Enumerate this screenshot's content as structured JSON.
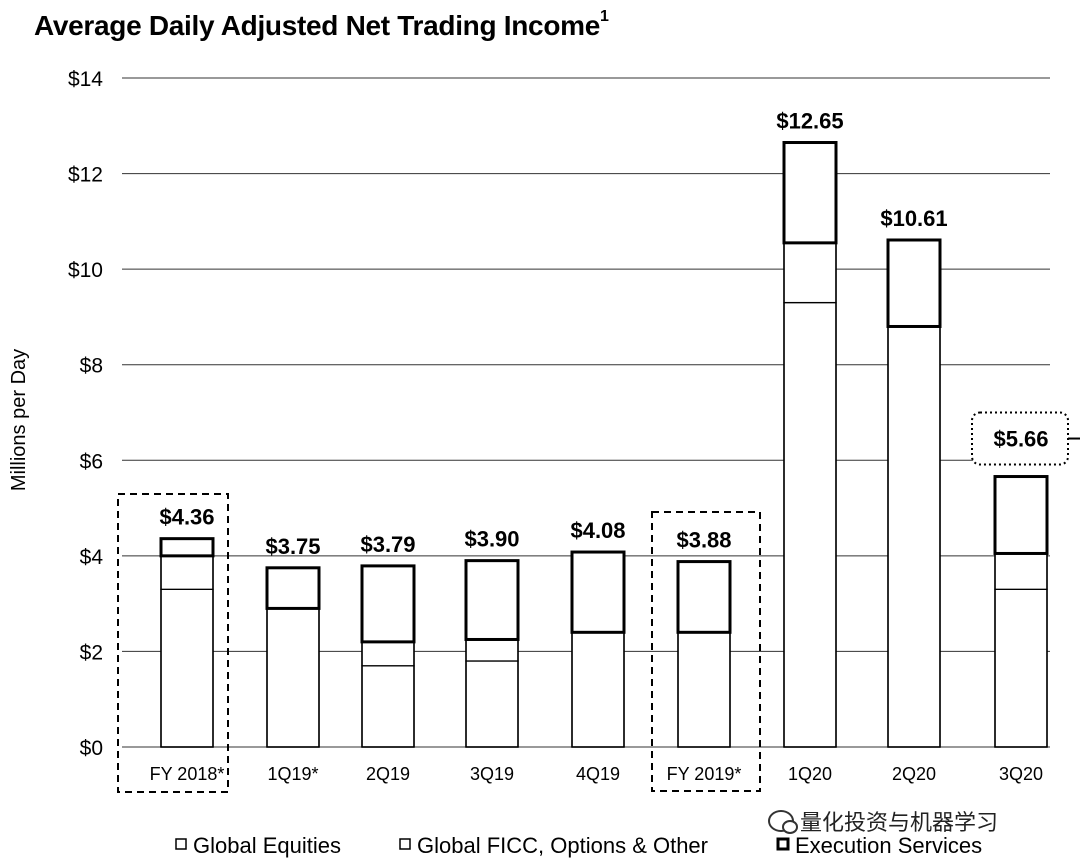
{
  "chart_data": {
    "type": "bar",
    "title": "Average Daily Adjusted Net Trading Income",
    "title_superscript": "1",
    "ylabel": "Millions per Day",
    "ylim": [
      0,
      14
    ],
    "yticks": [
      "$0",
      "$2",
      "$4",
      "$6",
      "$8",
      "$10",
      "$12",
      "$14"
    ],
    "categories": [
      "FY 2018*",
      "1Q19*",
      "2Q19",
      "3Q19",
      "4Q19",
      "FY 2019*",
      "1Q20",
      "2Q20",
      "3Q20"
    ],
    "totals": [
      "$4.36",
      "$3.75",
      "$3.79",
      "$3.90",
      "$4.08",
      "$3.88",
      "$12.65",
      "$10.61",
      "$5.66"
    ],
    "series": [
      {
        "name": "Global Equities",
        "values": [
          3.3,
          2.9,
          1.7,
          1.8,
          2.4,
          2.4,
          9.3,
          8.8,
          3.3
        ]
      },
      {
        "name": "Global FICC, Options & Other",
        "values": [
          0.7,
          0.0,
          0.5,
          0.45,
          0.0,
          0.0,
          1.25,
          0.0,
          0.75
        ]
      },
      {
        "name": "Execution Services",
        "values": [
          0.36,
          0.85,
          1.59,
          1.65,
          1.68,
          1.48,
          2.1,
          1.81,
          1.61
        ]
      }
    ],
    "highlighted_categories": [
      "FY 2018*",
      "FY 2019*",
      "3Q20"
    ],
    "legend_position": "bottom",
    "grid": true
  },
  "watermark": "量化投资与机器学习"
}
